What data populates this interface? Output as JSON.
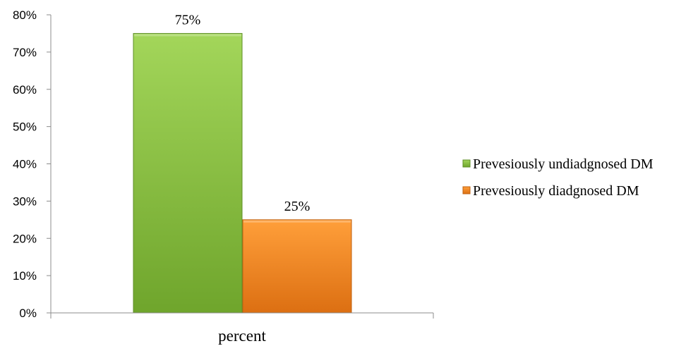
{
  "chart_data": {
    "type": "bar",
    "categories": [
      "percent"
    ],
    "series": [
      {
        "name": "Prevesiously undiadgnosed DM",
        "values": [
          75
        ],
        "label": "75%",
        "color": "#8cc43e"
      },
      {
        "name": "Prevesiously diadgnosed DM",
        "values": [
          25
        ],
        "label": "25%",
        "color": "#f28a20"
      }
    ],
    "ylim": [
      0,
      80
    ],
    "ytick_values": [
      0,
      10,
      20,
      30,
      40,
      50,
      60,
      70,
      80
    ],
    "yticks": [
      "0%",
      "10%",
      "20%",
      "30%",
      "40%",
      "50%",
      "60%",
      "70%",
      "80%"
    ],
    "legend_position": "right",
    "grid": false
  }
}
